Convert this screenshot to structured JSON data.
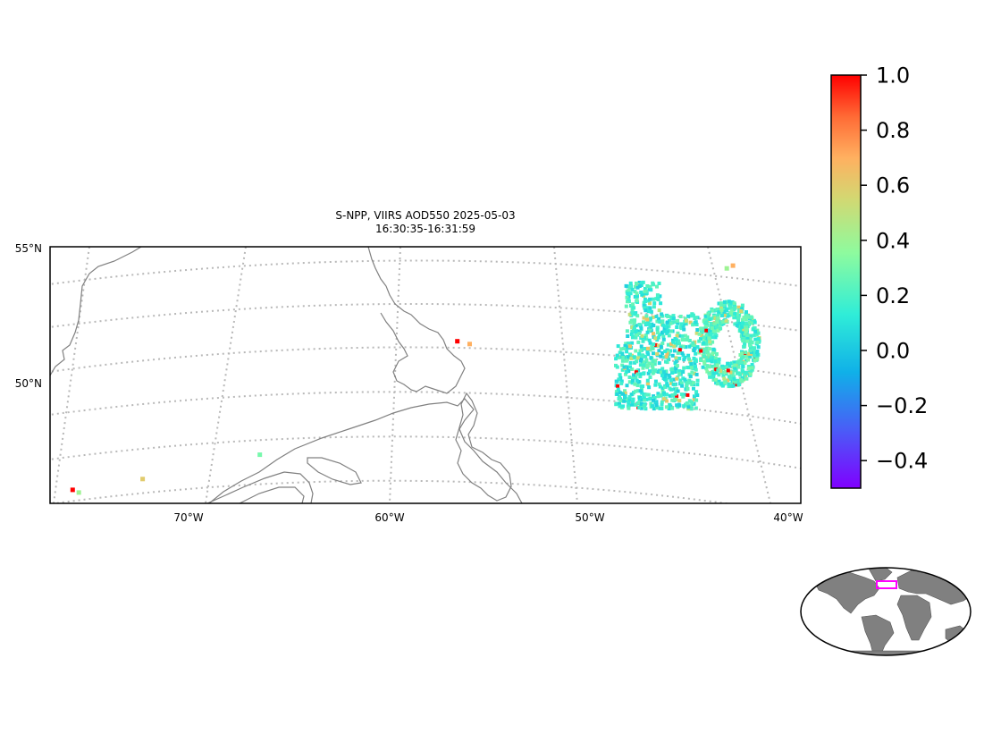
{
  "title": {
    "line1": "S-NPP, VIIRS AOD550 2025-05-03",
    "line2": "16:30:35-16:31:59"
  },
  "map": {
    "lat_labels": [
      "55°N",
      "50°N"
    ],
    "lon_labels": [
      "70°W",
      "60°W",
      "50°W",
      "40°W"
    ],
    "extent": {
      "lon": [
        -76,
        -39.5
      ],
      "lat": [
        46,
        55.5
      ]
    },
    "gridlines": "dotted",
    "coastline_color": "#808080"
  },
  "colorbar": {
    "ticks": [
      "1.0",
      "0.8",
      "0.6",
      "0.4",
      "0.2",
      "0.0",
      "−0.2",
      "−0.4"
    ],
    "range": [
      -0.5,
      1.0
    ],
    "colormap": "rainbow"
  },
  "inset": {
    "projection": "robinson",
    "land_color": "#808080",
    "box_color": "#ff00ff"
  },
  "chart_data": {
    "type": "scatter",
    "title": "S-NPP, VIIRS AOD550 2025-05-03 16:30:35-16:31:59",
    "variable": "AOD550",
    "color_range": [
      -0.5,
      1.0
    ],
    "clusters": [
      {
        "lon_range": [
          -48.5,
          -44.5
        ],
        "lat_range": [
          49.5,
          54.2
        ],
        "typical_value": 0.15
      },
      {
        "lon_range": [
          -44.5,
          -41.5
        ],
        "lat_range": [
          50.3,
          53.5
        ],
        "typical_value": 0.2
      }
    ],
    "isolated_points": [
      {
        "lon": -56.2,
        "lat": 52.0,
        "value": 1.0
      },
      {
        "lon": -55.6,
        "lat": 51.9,
        "value": 0.7
      },
      {
        "lon": -71.5,
        "lat": 46.9,
        "value": 0.6
      },
      {
        "lon": -74.9,
        "lat": 46.5,
        "value": 1.0
      },
      {
        "lon": -74.6,
        "lat": 46.4,
        "value": 0.4
      },
      {
        "lon": -65.8,
        "lat": 47.8,
        "value": 0.3
      },
      {
        "lon": -43.1,
        "lat": 54.7,
        "value": 0.4
      },
      {
        "lon": -42.8,
        "lat": 54.8,
        "value": 0.7
      }
    ]
  }
}
